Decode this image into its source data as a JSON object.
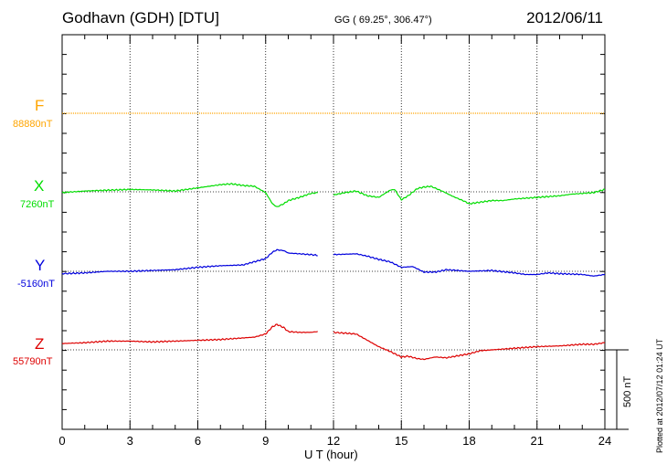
{
  "header": {
    "station": "Godhavn (GDH)  [DTU]",
    "coords": "GG ( 69.25°, 306.47°)",
    "date": "2012/06/11"
  },
  "side_note": "Plotted at 2012/07/12 01:24  UT",
  "scale_label": "500 nT",
  "chart_data": {
    "type": "line",
    "xlabel": "U T (hour)",
    "xlim": [
      0,
      24
    ],
    "x_ticks": [
      "0",
      "3",
      "6",
      "9",
      "12",
      "15",
      "18",
      "21",
      "24"
    ],
    "grid": true,
    "gap_hours": [
      11.3,
      12.0
    ],
    "series": [
      {
        "name": "F",
        "baseline": "88880nT",
        "color": "#ffa500",
        "points": [
          [
            0,
            0
          ],
          [
            24,
            0
          ]
        ]
      },
      {
        "name": "X",
        "baseline": "7260nT",
        "color": "#00dd00",
        "points": [
          [
            0,
            -5
          ],
          [
            1,
            5
          ],
          [
            2,
            10
          ],
          [
            3,
            15
          ],
          [
            4,
            12
          ],
          [
            5,
            5
          ],
          [
            6,
            25
          ],
          [
            7,
            45
          ],
          [
            7.5,
            50
          ],
          [
            8,
            40
          ],
          [
            8.5,
            35
          ],
          [
            9,
            -5
          ],
          [
            9.3,
            -75
          ],
          [
            9.5,
            -95
          ],
          [
            9.8,
            -75
          ],
          [
            10,
            -55
          ],
          [
            10.5,
            -35
          ],
          [
            11,
            -10
          ],
          [
            11.3,
            -5
          ],
          [
            12,
            -20
          ],
          [
            12.5,
            -5
          ],
          [
            13,
            5
          ],
          [
            13.5,
            -25
          ],
          [
            14,
            -35
          ],
          [
            14.5,
            10
          ],
          [
            14.7,
            15
          ],
          [
            15,
            -50
          ],
          [
            15.3,
            -25
          ],
          [
            15.7,
            20
          ],
          [
            16,
            30
          ],
          [
            16.3,
            35
          ],
          [
            16.8,
            5
          ],
          [
            17.3,
            -30
          ],
          [
            17.8,
            -60
          ],
          [
            18,
            -75
          ],
          [
            18.5,
            -65
          ],
          [
            19,
            -55
          ],
          [
            19.5,
            -55
          ],
          [
            20,
            -45
          ],
          [
            20.5,
            -40
          ],
          [
            21,
            -35
          ],
          [
            21.5,
            -30
          ],
          [
            22,
            -25
          ],
          [
            22.5,
            -15
          ],
          [
            23,
            -10
          ],
          [
            23.5,
            -5
          ],
          [
            24,
            15
          ]
        ]
      },
      {
        "name": "Y",
        "baseline": "-5160nT",
        "color": "#0000dd",
        "points": [
          [
            0,
            -15
          ],
          [
            1,
            -10
          ],
          [
            2,
            0
          ],
          [
            3,
            0
          ],
          [
            4,
            5
          ],
          [
            5,
            10
          ],
          [
            6,
            25
          ],
          [
            7,
            35
          ],
          [
            8,
            40
          ],
          [
            9,
            80
          ],
          [
            9.3,
            120
          ],
          [
            9.5,
            135
          ],
          [
            9.8,
            130
          ],
          [
            10,
            115
          ],
          [
            10.5,
            110
          ],
          [
            11,
            105
          ],
          [
            11.3,
            100
          ],
          [
            12,
            105
          ],
          [
            13,
            110
          ],
          [
            13.5,
            95
          ],
          [
            14,
            75
          ],
          [
            14.5,
            60
          ],
          [
            15,
            25
          ],
          [
            15.5,
            30
          ],
          [
            16,
            -5
          ],
          [
            16.5,
            -5
          ],
          [
            17,
            10
          ],
          [
            18,
            0
          ],
          [
            19,
            5
          ],
          [
            20,
            -10
          ],
          [
            20.5,
            -20
          ],
          [
            21,
            -20
          ],
          [
            21.5,
            -10
          ],
          [
            22,
            -15
          ],
          [
            23,
            -20
          ],
          [
            23.5,
            -30
          ],
          [
            24,
            -20
          ]
        ]
      },
      {
        "name": "Z",
        "baseline": "55790nT",
        "color": "#dd0000",
        "points": [
          [
            0,
            40
          ],
          [
            1,
            45
          ],
          [
            2,
            55
          ],
          [
            3,
            55
          ],
          [
            4,
            50
          ],
          [
            5,
            55
          ],
          [
            6,
            60
          ],
          [
            7,
            65
          ],
          [
            8,
            75
          ],
          [
            8.5,
            80
          ],
          [
            9,
            100
          ],
          [
            9.3,
            145
          ],
          [
            9.5,
            160
          ],
          [
            9.8,
            140
          ],
          [
            10,
            115
          ],
          [
            10.5,
            110
          ],
          [
            11,
            110
          ],
          [
            11.3,
            115
          ],
          [
            12,
            110
          ],
          [
            12.5,
            105
          ],
          [
            13,
            100
          ],
          [
            13.5,
            60
          ],
          [
            14,
            20
          ],
          [
            14.5,
            -10
          ],
          [
            15,
            -45
          ],
          [
            15.3,
            -40
          ],
          [
            15.7,
            -55
          ],
          [
            16,
            -60
          ],
          [
            16.5,
            -45
          ],
          [
            17,
            -50
          ],
          [
            18,
            -25
          ],
          [
            18.5,
            -5
          ],
          [
            19,
            0
          ],
          [
            20,
            10
          ],
          [
            21,
            20
          ],
          [
            22,
            25
          ],
          [
            23,
            35
          ],
          [
            23.5,
            35
          ],
          [
            24,
            45
          ]
        ]
      }
    ]
  }
}
